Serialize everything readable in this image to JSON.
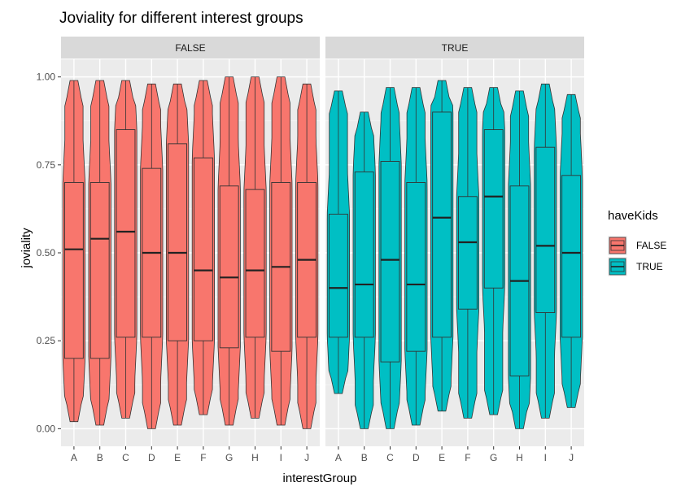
{
  "chart_data": {
    "type": "violin+boxplot",
    "title": "Joviality for different interest groups",
    "xlabel": "interestGroup",
    "ylabel": "joviality",
    "ylim": [
      -0.05,
      1.05
    ],
    "yticks": [
      0.0,
      0.25,
      0.5,
      0.75,
      1.0
    ],
    "ytick_labels": [
      "0.00",
      "0.25",
      "0.50",
      "0.75",
      "1.00"
    ],
    "categories": [
      "A",
      "B",
      "C",
      "D",
      "E",
      "F",
      "G",
      "H",
      "I",
      "J"
    ],
    "facet_variable": "haveKids",
    "grid": true,
    "legend": {
      "title": "haveKids",
      "position": "right",
      "entries": [
        {
          "label": "FALSE",
          "color": "#F8766D"
        },
        {
          "label": "TRUE",
          "color": "#00BFC4"
        }
      ]
    },
    "panels": [
      {
        "label": "FALSE",
        "color": "#F8766D",
        "groups": [
          {
            "group": "A",
            "min": 0.02,
            "q1": 0.2,
            "median": 0.51,
            "q3": 0.7,
            "max": 0.99
          },
          {
            "group": "B",
            "min": 0.01,
            "q1": 0.2,
            "median": 0.54,
            "q3": 0.7,
            "max": 0.99
          },
          {
            "group": "C",
            "min": 0.03,
            "q1": 0.26,
            "median": 0.56,
            "q3": 0.85,
            "max": 0.99
          },
          {
            "group": "D",
            "min": 0.0,
            "q1": 0.26,
            "median": 0.5,
            "q3": 0.74,
            "max": 0.98
          },
          {
            "group": "E",
            "min": 0.01,
            "q1": 0.25,
            "median": 0.5,
            "q3": 0.81,
            "max": 0.98
          },
          {
            "group": "F",
            "min": 0.04,
            "q1": 0.25,
            "median": 0.45,
            "q3": 0.77,
            "max": 0.99
          },
          {
            "group": "G",
            "min": 0.01,
            "q1": 0.23,
            "median": 0.43,
            "q3": 0.69,
            "max": 1.0
          },
          {
            "group": "H",
            "min": 0.03,
            "q1": 0.26,
            "median": 0.45,
            "q3": 0.68,
            "max": 1.0
          },
          {
            "group": "I",
            "min": 0.01,
            "q1": 0.22,
            "median": 0.46,
            "q3": 0.7,
            "max": 1.0
          },
          {
            "group": "J",
            "min": 0.0,
            "q1": 0.26,
            "median": 0.48,
            "q3": 0.7,
            "max": 0.98
          }
        ]
      },
      {
        "label": "TRUE",
        "color": "#00BFC4",
        "groups": [
          {
            "group": "A",
            "min": 0.1,
            "q1": 0.26,
            "median": 0.4,
            "q3": 0.61,
            "max": 0.96
          },
          {
            "group": "B",
            "min": 0.0,
            "q1": 0.26,
            "median": 0.41,
            "q3": 0.73,
            "max": 0.9
          },
          {
            "group": "C",
            "min": 0.0,
            "q1": 0.19,
            "median": 0.48,
            "q3": 0.76,
            "max": 0.97
          },
          {
            "group": "D",
            "min": 0.01,
            "q1": 0.22,
            "median": 0.41,
            "q3": 0.7,
            "max": 0.97
          },
          {
            "group": "E",
            "min": 0.05,
            "q1": 0.26,
            "median": 0.6,
            "q3": 0.9,
            "max": 0.99
          },
          {
            "group": "F",
            "min": 0.03,
            "q1": 0.34,
            "median": 0.53,
            "q3": 0.66,
            "max": 0.97
          },
          {
            "group": "G",
            "min": 0.04,
            "q1": 0.4,
            "median": 0.66,
            "q3": 0.85,
            "max": 0.97
          },
          {
            "group": "H",
            "min": 0.0,
            "q1": 0.15,
            "median": 0.42,
            "q3": 0.69,
            "max": 0.96
          },
          {
            "group": "I",
            "min": 0.03,
            "q1": 0.33,
            "median": 0.52,
            "q3": 0.8,
            "max": 0.98
          },
          {
            "group": "J",
            "min": 0.06,
            "q1": 0.26,
            "median": 0.5,
            "q3": 0.72,
            "max": 0.95
          }
        ]
      }
    ]
  }
}
